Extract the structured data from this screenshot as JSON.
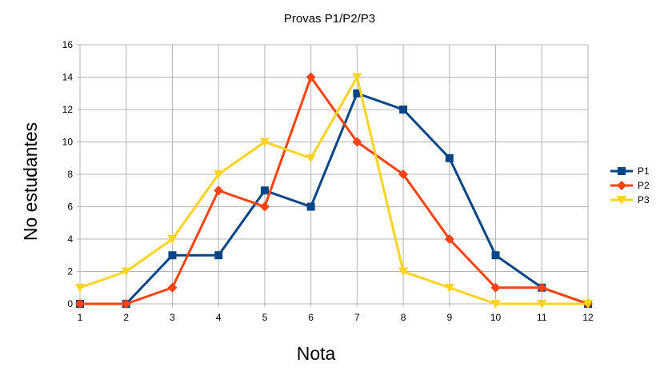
{
  "chart_data": {
    "type": "line",
    "title": "Provas P1/P2/P3",
    "xlabel": "Nota",
    "ylabel": "No estudantes",
    "x": [
      1,
      2,
      3,
      4,
      5,
      6,
      7,
      8,
      9,
      10,
      11,
      12
    ],
    "xticks": [
      "1",
      "2",
      "3",
      "4",
      "5",
      "6",
      "7",
      "8",
      "9",
      "10",
      "11",
      "12"
    ],
    "ylim": [
      0,
      16
    ],
    "yticks": [
      "0",
      "2",
      "4",
      "6",
      "8",
      "10",
      "12",
      "14",
      "16"
    ],
    "grid": true,
    "legend_position": "right",
    "series": [
      {
        "name": "P1",
        "color": "#004586",
        "marker": "square",
        "values": [
          0,
          0,
          3,
          3,
          7,
          6,
          13,
          12,
          9,
          3,
          1,
          0
        ]
      },
      {
        "name": "P2",
        "color": "#ff420e",
        "marker": "diamond",
        "values": [
          0,
          0,
          1,
          7,
          6,
          14,
          10,
          8,
          4,
          1,
          1,
          0
        ]
      },
      {
        "name": "P3",
        "color": "#ffd320",
        "marker": "triangle-down",
        "values": [
          1,
          2,
          4,
          8,
          10,
          9,
          14,
          2,
          1,
          0,
          0,
          0
        ]
      }
    ]
  }
}
